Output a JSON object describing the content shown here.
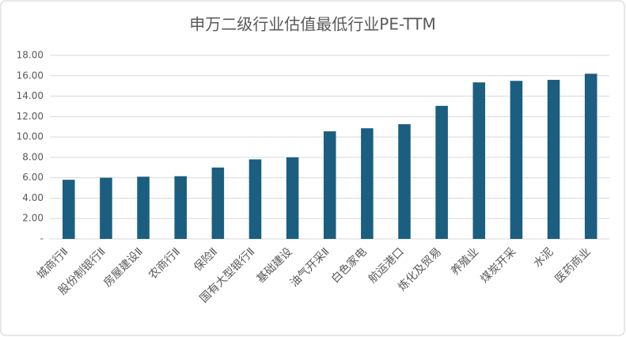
{
  "chart_data": {
    "type": "bar",
    "title": "申万二级行业估值最低行业PE-TTM",
    "categories": [
      "城商行Ⅱ",
      "股份制银行Ⅱ",
      "房屋建设Ⅱ",
      "农商行Ⅱ",
      "保险Ⅱ",
      "国有大型银行Ⅱ",
      "基础建设",
      "油气开采Ⅱ",
      "白色家电",
      "航运港口",
      "炼化及贸易",
      "养殖业",
      "煤炭开采",
      "水泥",
      "医药商业"
    ],
    "values": [
      5.8,
      6.0,
      6.1,
      6.15,
      7.0,
      7.8,
      8.0,
      10.55,
      10.85,
      11.25,
      13.05,
      15.35,
      15.5,
      15.6,
      16.2
    ],
    "color": "#1b5e80",
    "ylim": [
      0,
      18
    ],
    "yticks": [
      {
        "value": 0,
        "label": "-"
      },
      {
        "value": 2,
        "label": "2.00"
      },
      {
        "value": 4,
        "label": "4.00"
      },
      {
        "value": 6,
        "label": "6.00"
      },
      {
        "value": 8,
        "label": "8.00"
      },
      {
        "value": 10,
        "label": "10.00"
      },
      {
        "value": 12,
        "label": "12.00"
      },
      {
        "value": 14,
        "label": "14.00"
      },
      {
        "value": 16,
        "label": "16.00"
      },
      {
        "value": 18,
        "label": "18.00"
      }
    ],
    "grid": true
  }
}
